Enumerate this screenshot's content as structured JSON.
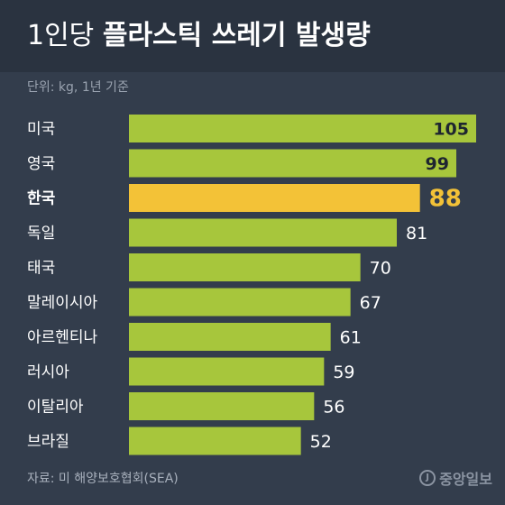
{
  "title_light": "1인당",
  "title_bold": "플라스틱 쓰레기 발생량",
  "unit_note": "단위: kg, 1년 기준",
  "source": "자료: 미 해양보호협회(SEA)",
  "brand": "중앙일보",
  "brand_logo": "J",
  "colors": {
    "bar": "#a7c63c",
    "highlight": "#f3c237",
    "background": "#333d4c"
  },
  "chart_data": {
    "type": "bar",
    "orientation": "horizontal",
    "title": "1인당 플라스틱 쓰레기 발생량",
    "unit": "kg",
    "categories": [
      "미국",
      "영국",
      "한국",
      "독일",
      "태국",
      "말레이시아",
      "아르헨티나",
      "러시아",
      "이탈리아",
      "브라질"
    ],
    "values": [
      105,
      99,
      88,
      81,
      70,
      67,
      61,
      59,
      56,
      52
    ],
    "highlight": "한국",
    "xlim": [
      0,
      105
    ],
    "grid": false,
    "legend": "none"
  }
}
